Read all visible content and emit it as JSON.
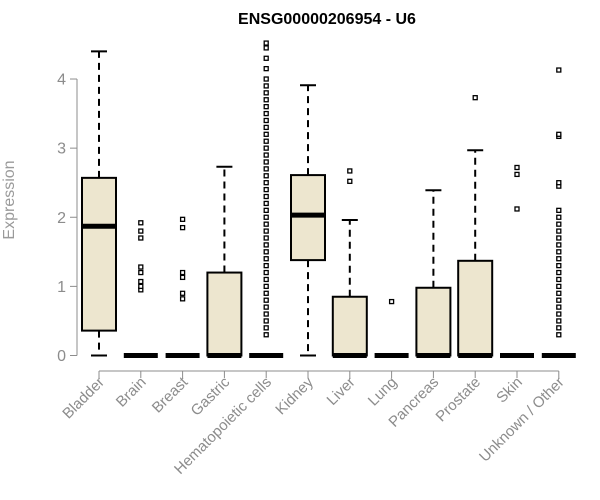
{
  "chart_data": {
    "type": "box",
    "title": "ENSG00000206954 - U6",
    "ylabel": "Expression",
    "xlabel": "",
    "ylim": [
      0,
      4.55
    ],
    "yticks": [
      0,
      1,
      2,
      3,
      4
    ],
    "grid": false,
    "colors": {
      "box_fill": "#ede6cf",
      "box_stroke": "#000000",
      "axis": "#8c8c8c",
      "text": "#8c8c8c"
    },
    "categories": [
      "Bladder",
      "Brain",
      "Breast",
      "Gastric",
      "Hematopoietic cells",
      "Kidney",
      "Liver",
      "Lung",
      "Pancreas",
      "Prostate",
      "Skin",
      "Unknown / Other"
    ],
    "boxes": [
      {
        "category": "Bladder",
        "lower_whisker": 0,
        "q1": 0.36,
        "median": 1.87,
        "q3": 2.57,
        "upper_whisker": 4.4,
        "outliers": []
      },
      {
        "category": "Brain",
        "lower_whisker": 0,
        "q1": 0,
        "median": 0,
        "q3": 0,
        "upper_whisker": 0,
        "outliers": [
          0.95,
          1.0,
          1.07,
          1.2,
          1.28,
          1.7,
          1.8,
          1.92
        ]
      },
      {
        "category": "Breast",
        "lower_whisker": 0,
        "q1": 0,
        "median": 0,
        "q3": 0,
        "upper_whisker": 0,
        "outliers": [
          0.82,
          0.9,
          1.13,
          1.2,
          1.85,
          1.97
        ]
      },
      {
        "category": "Gastric",
        "lower_whisker": 0,
        "q1": 0,
        "median": 0,
        "q3": 1.2,
        "upper_whisker": 2.73,
        "outliers": []
      },
      {
        "category": "Hematopoietic cells",
        "lower_whisker": 0,
        "q1": 0,
        "median": 0,
        "q3": 0,
        "upper_whisker": 0,
        "outliers": [
          0.3,
          0.4,
          0.5,
          0.6,
          0.7,
          0.8,
          0.9,
          1.0,
          1.1,
          1.2,
          1.3,
          1.4,
          1.5,
          1.6,
          1.7,
          1.8,
          1.9,
          2.0,
          2.1,
          2.2,
          2.3,
          2.4,
          2.5,
          2.6,
          2.7,
          2.8,
          2.9,
          3.0,
          3.1,
          3.2,
          3.3,
          3.4,
          3.5,
          3.6,
          3.7,
          3.8,
          3.9,
          4.0,
          4.15,
          4.3,
          4.45,
          4.52
        ]
      },
      {
        "category": "Kidney",
        "lower_whisker": 0,
        "q1": 1.38,
        "median": 2.03,
        "q3": 2.61,
        "upper_whisker": 3.91,
        "outliers": []
      },
      {
        "category": "Liver",
        "lower_whisker": 0,
        "q1": 0,
        "median": 0,
        "q3": 0.85,
        "upper_whisker": 1.96,
        "outliers": [
          2.52,
          2.67
        ]
      },
      {
        "category": "Lung",
        "lower_whisker": 0,
        "q1": 0,
        "median": 0,
        "q3": 0,
        "upper_whisker": 0,
        "outliers": [
          0.78
        ]
      },
      {
        "category": "Pancreas",
        "lower_whisker": 0,
        "q1": 0,
        "median": 0,
        "q3": 0.98,
        "upper_whisker": 2.39,
        "outliers": []
      },
      {
        "category": "Prostate",
        "lower_whisker": 0,
        "q1": 0,
        "median": 0,
        "q3": 1.37,
        "upper_whisker": 2.97,
        "outliers": [
          3.73
        ]
      },
      {
        "category": "Skin",
        "lower_whisker": 0,
        "q1": 0,
        "median": 0,
        "q3": 0,
        "upper_whisker": 0,
        "outliers": [
          2.12,
          2.62,
          2.72
        ]
      },
      {
        "category": "Unknown / Other",
        "lower_whisker": 0,
        "q1": 0,
        "median": 0,
        "q3": 0,
        "upper_whisker": 0,
        "outliers": [
          0.3,
          0.4,
          0.5,
          0.6,
          0.7,
          0.8,
          0.9,
          1.0,
          1.1,
          1.2,
          1.3,
          1.4,
          1.5,
          1.6,
          1.7,
          1.8,
          1.9,
          2.0,
          2.1,
          2.45,
          2.5,
          3.17,
          3.2,
          4.13
        ]
      }
    ]
  }
}
